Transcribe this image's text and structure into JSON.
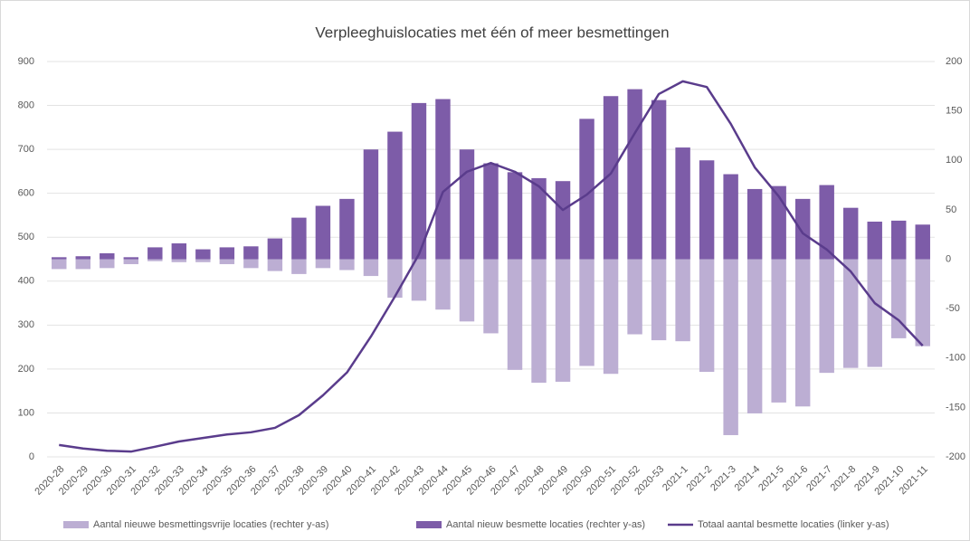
{
  "chart_data": {
    "type": "bar-line",
    "title": "Verpleeghuislocaties met één of meer besmettingen",
    "categories": [
      "2020-28",
      "2020-29",
      "2020-30",
      "2020-31",
      "2020-32",
      "2020-33",
      "2020-34",
      "2020-35",
      "2020-36",
      "2020-37",
      "2020-38",
      "2020-39",
      "2020-40",
      "2020-41",
      "2020-42",
      "2020-43",
      "2020-44",
      "2020-45",
      "2020-46",
      "2020-47",
      "2020-48",
      "2020-49",
      "2020-50",
      "2020-51",
      "2020-52",
      "2020-53",
      "2021-1",
      "2021-2",
      "2021-3",
      "2021-4",
      "2021-5",
      "2021-6",
      "2021-7",
      "2021-8",
      "2021-9",
      "2021-10",
      "2021-11"
    ],
    "series": [
      {
        "name": "Aantal nieuwe besmettingsvrije locaties (rechter y-as)",
        "color": "#bcaed3",
        "kind": "bar",
        "axis": "y2",
        "values": [
          -10,
          -10,
          -9,
          -5,
          -2,
          -3,
          -3,
          -5,
          -9,
          -12,
          -15,
          -9,
          -11,
          -17,
          -39,
          -42,
          -51,
          -63,
          -75,
          -112,
          -125,
          -124,
          -108,
          -116,
          -76,
          -82,
          -83,
          -114,
          -178,
          -156,
          -145,
          -149,
          -115,
          -110,
          -109,
          -80,
          -88
        ]
      },
      {
        "name": "Aantal nieuw besmette locaties (rechter y-as)",
        "color": "#7d5ca8",
        "kind": "bar",
        "axis": "y2",
        "values": [
          2,
          3,
          6,
          2,
          12,
          16,
          10,
          12,
          13,
          21,
          42,
          54,
          61,
          111,
          129,
          158,
          162,
          111,
          97,
          88,
          82,
          79,
          142,
          165,
          172,
          161,
          113,
          100,
          86,
          71,
          74,
          61,
          75,
          52,
          38,
          39,
          35
        ]
      },
      {
        "name": "Totaal aantal besmette locaties (linker y-as)",
        "color": "#5a3c8c",
        "kind": "line",
        "axis": "y",
        "values": [
          27,
          19,
          14,
          12,
          23,
          35,
          43,
          51,
          56,
          66,
          95,
          140,
          192,
          274,
          365,
          461,
          603,
          649,
          669,
          649,
          616,
          562,
          597,
          645,
          737,
          826,
          855,
          842,
          758,
          659,
          593,
          509,
          472,
          422,
          350,
          311,
          253
        ]
      }
    ],
    "ylim": [
      0,
      900
    ],
    "yticks": [
      0,
      100,
      200,
      300,
      400,
      500,
      600,
      700,
      800,
      900
    ],
    "y2lim": [
      -200,
      200
    ],
    "y2ticks": [
      -200,
      -150,
      -100,
      -50,
      0,
      50,
      100,
      150,
      200
    ],
    "grid": true,
    "legend": "bottom"
  }
}
